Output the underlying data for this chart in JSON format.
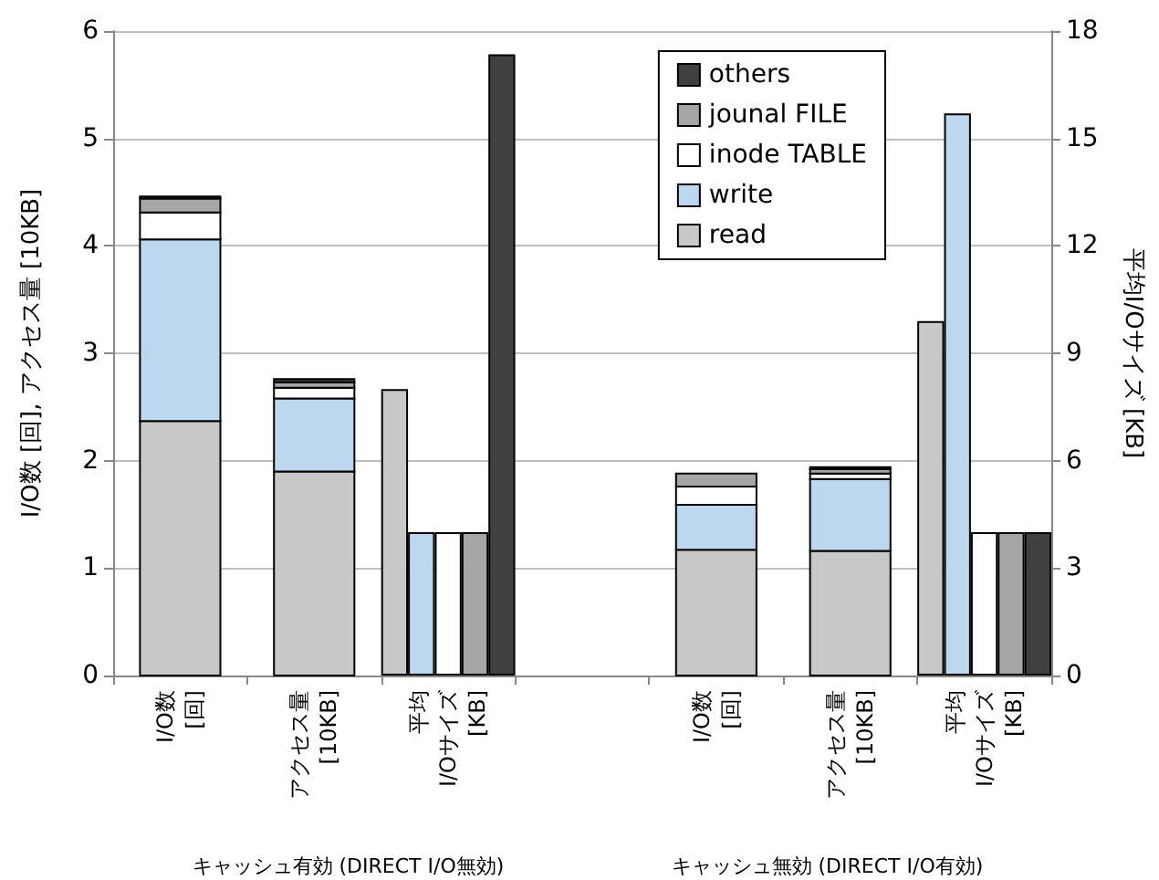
{
  "chart_data": {
    "type": "bar",
    "categories": [
      "I/O数\n[回]",
      "アクセス量\n[10KB]",
      "平均\nI/Oサイズ\n[KB]",
      null,
      "I/O数\n[回]",
      "アクセス量\n[10KB]",
      "平均\nI/Oサイズ\n[KB]"
    ],
    "ylabel": "I/O数 [回], アクセス量 [10KB]",
    "y2label": "平均I/Oサイズ [KB]",
    "ylim": [
      0,
      6
    ],
    "yticks": [
      0,
      1,
      2,
      3,
      4,
      5,
      6
    ],
    "y2lim": [
      0,
      18
    ],
    "y2ticks": [
      0,
      3,
      6,
      9,
      12,
      15,
      18
    ],
    "grid": "y",
    "legend": "top right",
    "annotations": [
      "キャッシュ有効 (DIRECT I/O無効)",
      "キャッシュ無効 (DIRECT I/O有効)"
    ],
    "series": [
      {
        "name": "read",
        "color": "#c8c8c8",
        "values": [
          2.37,
          1.9,
          null,
          null,
          1.17,
          1.16,
          null
        ],
        "base": [
          0,
          0,
          null,
          null,
          0,
          0,
          null
        ]
      },
      {
        "name": "write",
        "color": "#bdd7ee",
        "values": [
          1.69,
          0.68,
          null,
          null,
          0.42,
          0.67,
          null
        ],
        "base": [
          2.37,
          1.9,
          null,
          null,
          1.17,
          1.16,
          null
        ]
      },
      {
        "name": "inode TABLE",
        "color": "#ffffff",
        "values": [
          0.25,
          0.1,
          null,
          null,
          0.17,
          0.05,
          null
        ],
        "base": [
          4.06,
          2.58,
          null,
          null,
          1.59,
          1.83,
          null
        ]
      },
      {
        "name": "jounal FILE",
        "color": "#a6a6a6",
        "values": [
          0.13,
          0.05,
          null,
          null,
          0.12,
          0.04,
          null
        ],
        "base": [
          4.31,
          2.68,
          null,
          null,
          1.76,
          1.88,
          null
        ]
      },
      {
        "name": "others",
        "color": "#404040",
        "values": [
          0.02,
          0.03,
          null,
          null,
          null,
          0.02,
          null
        ],
        "base": [
          4.44,
          2.73,
          null,
          null,
          null,
          1.92,
          null
        ]
      },
      {
        "color": "#c8c8c8",
        "axis": "y2",
        "values": [
          null,
          null,
          8,
          null,
          null,
          null,
          9.9
        ]
      },
      {
        "color": "#bdd7ee",
        "axis": "y2",
        "values": [
          null,
          null,
          4,
          null,
          null,
          null,
          15.7
        ]
      },
      {
        "color": "#ffffff",
        "axis": "y2",
        "values": [
          null,
          null,
          4,
          null,
          null,
          null,
          4
        ]
      },
      {
        "color": "#a6a6a6",
        "axis": "y2",
        "values": [
          null,
          null,
          4,
          null,
          null,
          null,
          4
        ]
      },
      {
        "color": "#404040",
        "axis": "y2",
        "values": [
          null,
          null,
          17.35,
          null,
          null,
          null,
          4
        ]
      }
    ]
  }
}
